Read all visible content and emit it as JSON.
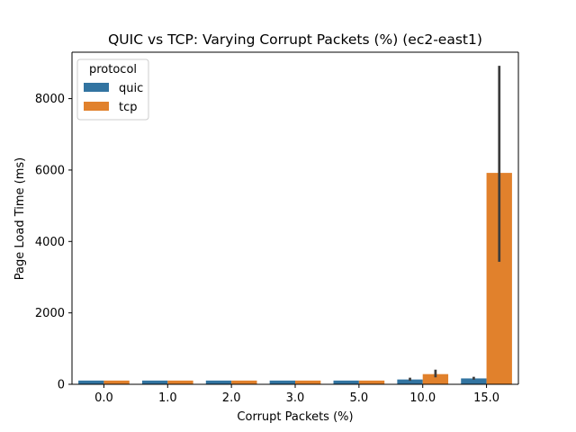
{
  "chart_data": {
    "type": "bar",
    "title": "QUIC vs TCP: Varying Corrupt Packets (%) (ec2-east1)",
    "xlabel": "Corrupt Packets (%)",
    "ylabel": "Page Load Time (ms)",
    "categories": [
      "0.0",
      "1.0",
      "2.0",
      "3.0",
      "5.0",
      "10.0",
      "15.0"
    ],
    "ylim": [
      0,
      9300
    ],
    "yticks": [
      0,
      2000,
      4000,
      6000,
      8000
    ],
    "grid": false,
    "legend": {
      "title": "protocol",
      "placement": "top-left"
    },
    "series": [
      {
        "name": "quic",
        "color": "#3274a1",
        "values": [
          105,
          105,
          105,
          105,
          105,
          135,
          165
        ],
        "error_low": [
          null,
          null,
          null,
          null,
          null,
          100,
          130
        ],
        "error_high": [
          null,
          null,
          null,
          null,
          null,
          185,
          210
        ]
      },
      {
        "name": "tcp",
        "color": "#e1812c",
        "values": [
          105,
          105,
          105,
          105,
          105,
          285,
          5920
        ],
        "error_low": [
          null,
          null,
          null,
          null,
          null,
          195,
          3430
        ],
        "error_high": [
          null,
          null,
          null,
          null,
          null,
          410,
          8920
        ]
      }
    ],
    "error_color": "#3c3c3c"
  }
}
